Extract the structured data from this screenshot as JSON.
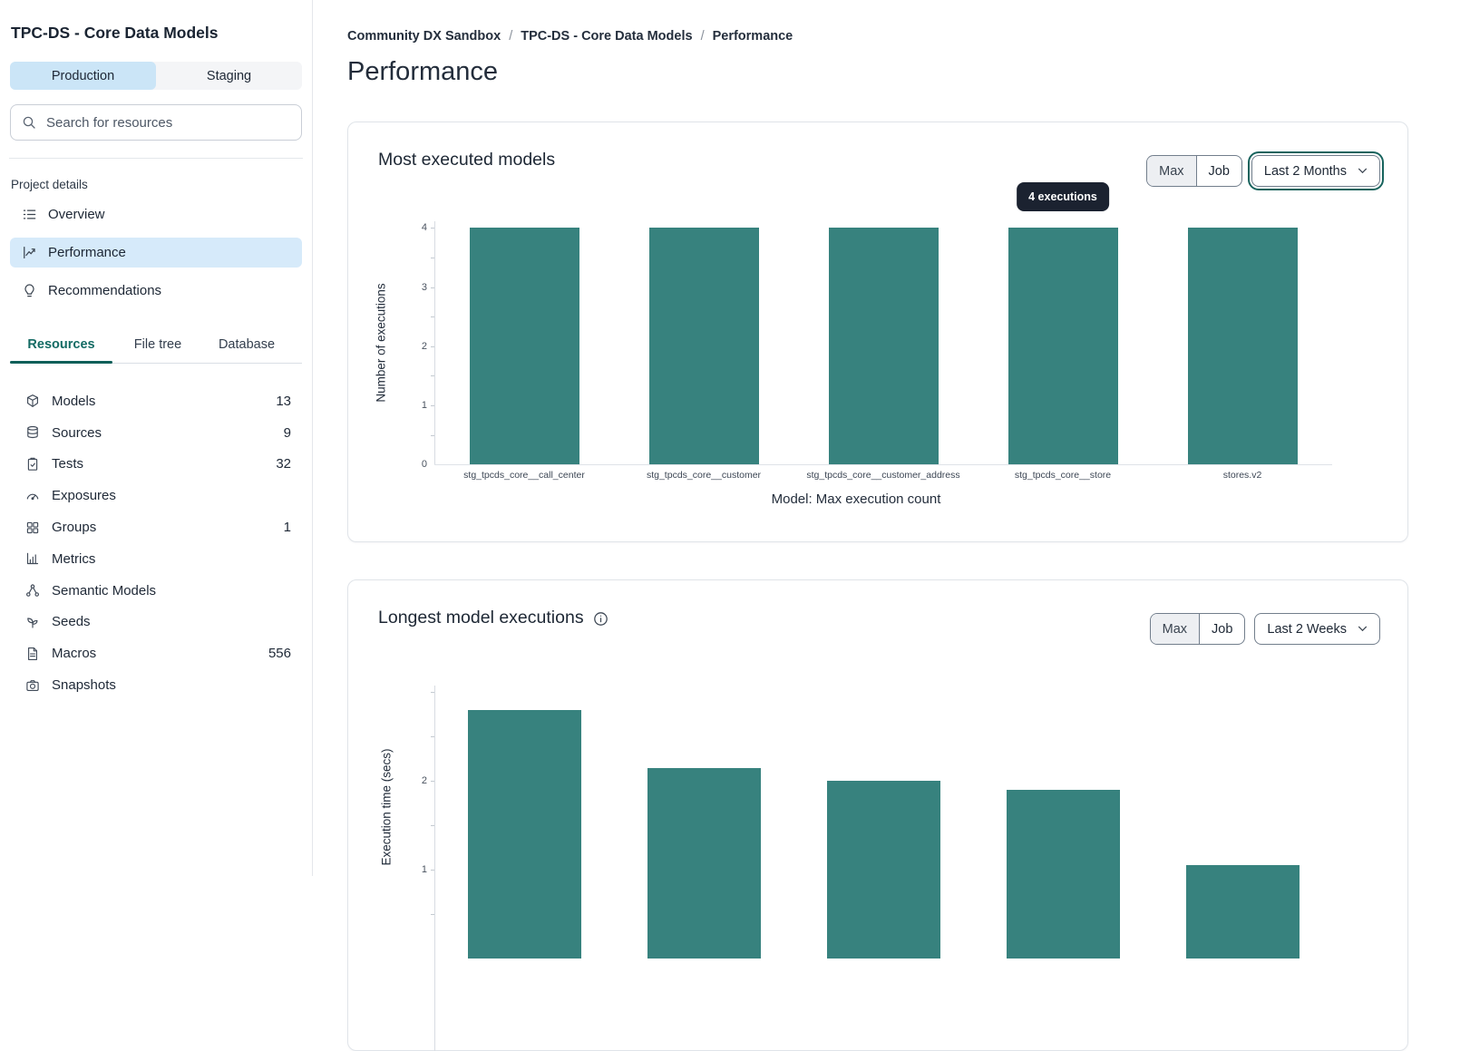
{
  "colors": {
    "accent_teal": "#37827E",
    "active_blue": "#cbe5f7",
    "tooltip_bg": "#1b2230",
    "tab_teal": "#146b64"
  },
  "sidebar": {
    "project_title": "TPC-DS - Core Data Models",
    "env": {
      "production": "Production",
      "staging": "Staging",
      "selected": "Production"
    },
    "search_placeholder": "Search for resources",
    "project_details_label": "Project details",
    "nav": [
      {
        "label": "Overview",
        "icon": "list-icon",
        "active": false
      },
      {
        "label": "Performance",
        "icon": "trend-icon",
        "active": true
      },
      {
        "label": "Recommendations",
        "icon": "lightbulb-icon",
        "active": false
      }
    ],
    "tabs": [
      {
        "label": "Resources",
        "active": true
      },
      {
        "label": "File tree",
        "active": false
      },
      {
        "label": "Database",
        "active": false
      }
    ],
    "resources": [
      {
        "label": "Models",
        "count": "13",
        "icon": "cube-icon"
      },
      {
        "label": "Sources",
        "count": "9",
        "icon": "database-icon"
      },
      {
        "label": "Tests",
        "count": "32",
        "icon": "clipboard-check-icon"
      },
      {
        "label": "Exposures",
        "count": "",
        "icon": "gauge-icon"
      },
      {
        "label": "Groups",
        "count": "1",
        "icon": "grid-icon"
      },
      {
        "label": "Metrics",
        "count": "",
        "icon": "bar-chart-icon"
      },
      {
        "label": "Semantic Models",
        "count": "",
        "icon": "share-nodes-icon"
      },
      {
        "label": "Seeds",
        "count": "",
        "icon": "seedling-icon"
      },
      {
        "label": "Macros",
        "count": "556",
        "icon": "file-icon"
      },
      {
        "label": "Snapshots",
        "count": "",
        "icon": "camera-icon"
      }
    ]
  },
  "breadcrumb": {
    "items": [
      "Community DX Sandbox",
      "TPC-DS - Core Data Models",
      "Performance"
    ],
    "separator": "/"
  },
  "page_title": "Performance",
  "cards": [
    {
      "title": "Most executed models",
      "toggle": {
        "options": [
          "Max",
          "Job"
        ],
        "selected": "Max"
      },
      "dropdown": {
        "value": "Last 2 Months",
        "focused": true
      },
      "tooltip": "4 executions"
    },
    {
      "title": "Longest model executions",
      "has_info_icon": true,
      "toggle": {
        "options": [
          "Max",
          "Job"
        ],
        "selected": "Max"
      },
      "dropdown": {
        "value": "Last 2 Weeks",
        "focused": false
      }
    }
  ],
  "chart_data": [
    {
      "type": "bar",
      "title": "Most executed models",
      "categories": [
        "stg_tpcds_core__call_center",
        "stg_tpcds_core__customer",
        "stg_tpcds_core__customer_address",
        "stg_tpcds_core__store",
        "stores.v2"
      ],
      "values": [
        4,
        4,
        4,
        4,
        4
      ],
      "xlabel": "Model: Max execution count",
      "ylabel": "Number of executions",
      "yticks": [
        0,
        1,
        2,
        3,
        4
      ],
      "ylim": [
        0,
        4.1
      ],
      "bar_color": "#37827E",
      "grid": false,
      "tooltip": {
        "text": "4 executions",
        "bar_index": 3
      }
    },
    {
      "type": "bar",
      "title": "Longest model executions",
      "values": [
        2.8,
        2.15,
        2.0,
        1.9,
        1.05
      ],
      "ylabel": "Execution time (secs)",
      "yticks": [
        1,
        2
      ],
      "ylim": [
        0,
        3.1
      ],
      "bar_color": "#37827E",
      "grid": false,
      "note": "chart is cut off at the bottom of the viewport; category labels not visible"
    }
  ]
}
